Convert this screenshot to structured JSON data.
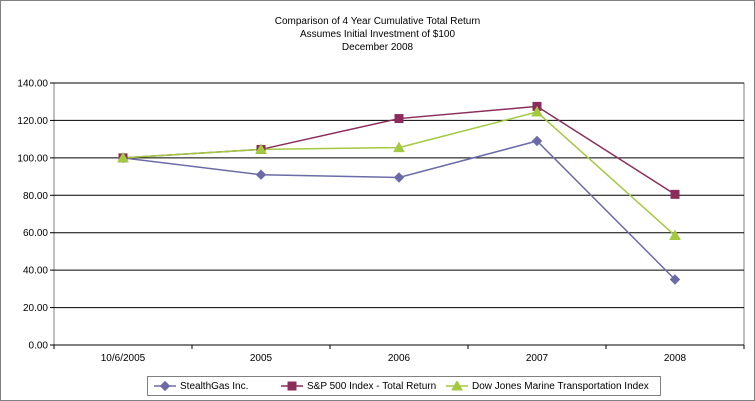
{
  "chart_data": {
    "type": "line",
    "title_lines": [
      "Comparison of 4 Year Cumulative Total Return",
      "Assumes Initial Investment of $100",
      "December 2008"
    ],
    "xlabel": "",
    "ylabel": "",
    "categories": [
      "10/6/2005",
      "2005",
      "2006",
      "2007",
      "2008"
    ],
    "ylim": [
      0,
      140
    ],
    "yticks": [
      "0.00",
      "20.00",
      "40.00",
      "60.00",
      "80.00",
      "100.00",
      "120.00",
      "140.00"
    ],
    "grid": "horizontal",
    "legend_position": "bottom",
    "series": [
      {
        "name": "StealthGas Inc.",
        "color": "#6b6ba8",
        "marker": "diamond",
        "values": [
          100,
          91,
          89.5,
          109,
          35
        ]
      },
      {
        "name": "S&P 500 Index - Total Return",
        "color": "#8b2d5a",
        "marker": "square",
        "values": [
          100,
          104.5,
          121,
          127.5,
          80.5
        ]
      },
      {
        "name": "Dow Jones Marine Transportation Index",
        "color": "#a3c940",
        "marker": "triangle",
        "values": [
          100,
          104.5,
          105.5,
          124.5,
          58.5
        ]
      }
    ]
  }
}
